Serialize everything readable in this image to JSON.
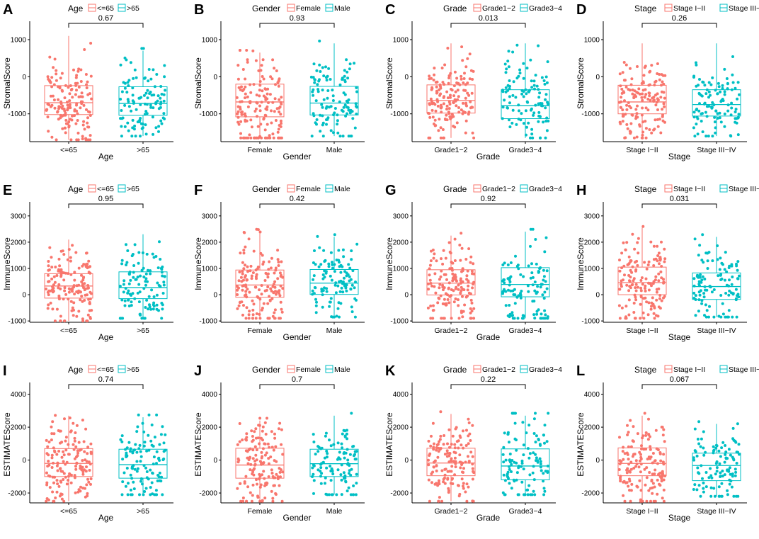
{
  "figure": {
    "colors": {
      "group1": "#F8766D",
      "group2": "#00BFC4",
      "axis": "#000000"
    }
  },
  "chart_data": [
    {
      "id": "A",
      "type": "box",
      "title": "",
      "legend_title": "Age",
      "categories": [
        "<=65",
        ">65"
      ],
      "xlabel": "Age",
      "ylabel": "StromalScore",
      "ylim": [
        -1750,
        1400
      ],
      "yticks": [
        -1000,
        0,
        1000
      ],
      "pvalue": "0.67",
      "boxes": [
        {
          "q1": -1020,
          "median": -700,
          "q3": -240,
          "low": -1700,
          "high": 1100
        },
        {
          "q1": -1040,
          "median": -720,
          "q3": -270,
          "low": -1600,
          "high": 700
        }
      ]
    },
    {
      "id": "B",
      "type": "box",
      "title": "",
      "legend_title": "Gender",
      "categories": [
        "Female",
        "Male"
      ],
      "xlabel": "Gender",
      "ylabel": "StromalScore",
      "ylim": [
        -1750,
        1400
      ],
      "yticks": [
        -1000,
        0,
        1000
      ],
      "pvalue": "0.93",
      "boxes": [
        {
          "q1": -1080,
          "median": -680,
          "q3": -200,
          "low": -1650,
          "high": 650
        },
        {
          "q1": -1030,
          "median": -710,
          "q3": -260,
          "low": -1600,
          "high": 900
        }
      ]
    },
    {
      "id": "C",
      "type": "box",
      "title": "",
      "legend_title": "Grade",
      "categories": [
        "Grade1−2",
        "Grade3−4"
      ],
      "xlabel": "Grade",
      "ylabel": "StromalScore",
      "ylim": [
        -1750,
        1400
      ],
      "yticks": [
        -1000,
        0,
        1000
      ],
      "pvalue": "0.013",
      "boxes": [
        {
          "q1": -980,
          "median": -640,
          "q3": -220,
          "low": -1650,
          "high": 900
        },
        {
          "q1": -1130,
          "median": -780,
          "q3": -350,
          "low": -1650,
          "high": 900
        }
      ]
    },
    {
      "id": "D",
      "type": "box",
      "title": "",
      "legend_title": "Stage",
      "categories": [
        "Stage I−II",
        "Stage III−IV"
      ],
      "xlabel": "Stage",
      "ylabel": "StromalScore",
      "ylim": [
        -1750,
        1400
      ],
      "yticks": [
        -1000,
        0,
        1000
      ],
      "pvalue": "0.26",
      "boxes": [
        {
          "q1": -1000,
          "median": -680,
          "q3": -230,
          "low": -1650,
          "high": 900
        },
        {
          "q1": -1060,
          "median": -750,
          "q3": -350,
          "low": -1600,
          "high": 900
        }
      ]
    },
    {
      "id": "E",
      "type": "box",
      "title": "",
      "legend_title": "Age",
      "categories": [
        "<=65",
        ">65"
      ],
      "xlabel": "Age",
      "ylabel": "ImmuneScore",
      "ylim": [
        -1050,
        3400
      ],
      "yticks": [
        -1000,
        0,
        1000,
        2000,
        3000
      ],
      "pvalue": "0.95",
      "boxes": [
        {
          "q1": -130,
          "median": 330,
          "q3": 800,
          "low": -1000,
          "high": 2100
        },
        {
          "q1": -150,
          "median": 270,
          "q3": 870,
          "low": -900,
          "high": 2300
        }
      ]
    },
    {
      "id": "F",
      "type": "box",
      "title": "",
      "legend_title": "Gender",
      "categories": [
        "Female",
        "Male"
      ],
      "xlabel": "Gender",
      "ylabel": "ImmuneScore",
      "ylim": [
        -1050,
        3400
      ],
      "yticks": [
        -1000,
        0,
        1000,
        2000,
        3000
      ],
      "pvalue": "0.42",
      "boxes": [
        {
          "q1": -100,
          "median": 370,
          "q3": 940,
          "low": -900,
          "high": 2400
        },
        {
          "q1": 10,
          "median": 440,
          "q3": 960,
          "low": -850,
          "high": 2200
        }
      ]
    },
    {
      "id": "G",
      "type": "box",
      "title": "",
      "legend_title": "Grade",
      "categories": [
        "Grade1−2",
        "Grade3−4"
      ],
      "xlabel": "Grade",
      "ylabel": "ImmuneScore",
      "ylim": [
        -1050,
        3400
      ],
      "yticks": [
        -1000,
        0,
        1000,
        2000,
        3000
      ],
      "pvalue": "0.92",
      "boxes": [
        {
          "q1": -10,
          "median": 440,
          "q3": 950,
          "low": -900,
          "high": 2250
        },
        {
          "q1": -80,
          "median": 390,
          "q3": 1030,
          "low": -900,
          "high": 2400
        }
      ]
    },
    {
      "id": "H",
      "type": "box",
      "title": "",
      "legend_title": "Stage",
      "categories": [
        "Stage I−II",
        "Stage III−IV"
      ],
      "xlabel": "Stage",
      "ylabel": "ImmuneScore",
      "ylim": [
        -1050,
        3400
      ],
      "yticks": [
        -1000,
        0,
        1000,
        2000,
        3000
      ],
      "pvalue": "0.031",
      "boxes": [
        {
          "q1": 0,
          "median": 460,
          "q3": 1050,
          "low": -900,
          "high": 2550
        },
        {
          "q1": -180,
          "median": 310,
          "q3": 830,
          "low": -850,
          "high": 2200
        }
      ]
    },
    {
      "id": "I",
      "type": "box",
      "title": "",
      "legend_title": "Age",
      "categories": [
        "<=65",
        ">65"
      ],
      "xlabel": "Age",
      "ylabel": "ESTIMATEScore",
      "ylim": [
        -2600,
        4500
      ],
      "yticks": [
        -2000,
        0,
        2000,
        4000
      ],
      "pvalue": "0.74",
      "boxes": [
        {
          "q1": -1000,
          "median": -200,
          "q3": 700,
          "low": -2500,
          "high": 2700
        },
        {
          "q1": -1100,
          "median": -280,
          "q3": 660,
          "low": -2100,
          "high": 2600
        }
      ]
    },
    {
      "id": "J",
      "type": "box",
      "title": "",
      "legend_title": "Gender",
      "categories": [
        "Female",
        "Male"
      ],
      "xlabel": "Gender",
      "ylabel": "ESTIMATEScore",
      "ylim": [
        -2600,
        4500
      ],
      "yticks": [
        -2000,
        0,
        2000,
        4000
      ],
      "pvalue": "0.7",
      "boxes": [
        {
          "q1": -1100,
          "median": -300,
          "q3": 720,
          "low": -2500,
          "high": 2400
        },
        {
          "q1": -1000,
          "median": -220,
          "q3": 660,
          "low": -2100,
          "high": 2700
        }
      ]
    },
    {
      "id": "K",
      "type": "box",
      "title": "",
      "legend_title": "Grade",
      "categories": [
        "Grade1−2",
        "Grade3−4"
      ],
      "xlabel": "Grade",
      "ylabel": "ESTIMATEScore",
      "ylim": [
        -2600,
        4500
      ],
      "yticks": [
        -2000,
        0,
        2000,
        4000
      ],
      "pvalue": "0.22",
      "boxes": [
        {
          "q1": -950,
          "median": -180,
          "q3": 720,
          "low": -2500,
          "high": 2800
        },
        {
          "q1": -1200,
          "median": -360,
          "q3": 680,
          "low": -2100,
          "high": 2700
        }
      ]
    },
    {
      "id": "L",
      "type": "box",
      "title": "",
      "legend_title": "Stage",
      "categories": [
        "Stage I−II",
        "Stage III−IV"
      ],
      "xlabel": "Stage",
      "ylabel": "ESTIMATEScore",
      "ylim": [
        -2600,
        4500
      ],
      "yticks": [
        -2000,
        0,
        2000,
        4000
      ],
      "pvalue": "0.067",
      "boxes": [
        {
          "q1": -950,
          "median": -200,
          "q3": 740,
          "low": -2500,
          "high": 2700
        },
        {
          "q1": -1250,
          "median": -330,
          "q3": 420,
          "low": -2200,
          "high": 2200
        }
      ]
    }
  ]
}
